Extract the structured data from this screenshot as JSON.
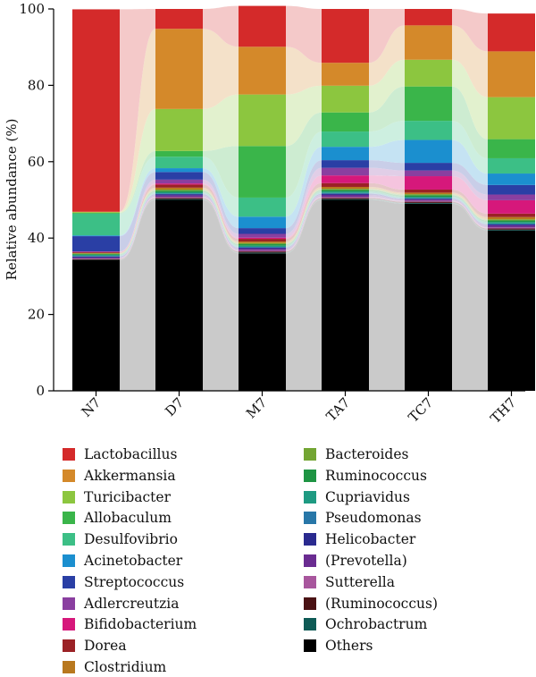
{
  "chart_data": {
    "type": "bar",
    "stacked": true,
    "normalized": true,
    "categories": [
      "N7",
      "D7",
      "M7",
      "TA7",
      "TC7",
      "TH7"
    ],
    "ylabel": "Relative abundance (%)",
    "ylim": [
      0,
      100
    ],
    "yticks": [
      0,
      20,
      40,
      60,
      80,
      100
    ],
    "legend_position": "bottom",
    "series": [
      {
        "name": "Others",
        "color": "#000000",
        "values": [
          34.2,
          50.0,
          36.0,
          50.0,
          49.0,
          42.0
        ]
      },
      {
        "name": "Ochrobactrum",
        "color": "#0e5a55",
        "values": [
          0.1,
          0.2,
          0.2,
          0.2,
          0.2,
          0.2
        ]
      },
      {
        "name": "(Ruminococcus)",
        "color": "#4a1214",
        "values": [
          0.2,
          0.3,
          0.3,
          0.3,
          0.3,
          0.3
        ]
      },
      {
        "name": "Sutterella",
        "color": "#a8569d",
        "values": [
          0.2,
          0.3,
          0.3,
          0.3,
          0.3,
          0.3
        ]
      },
      {
        "name": "(Prevotella)",
        "color": "#6a2c91",
        "values": [
          0.2,
          0.4,
          0.4,
          0.5,
          0.3,
          0.5
        ]
      },
      {
        "name": "Helicobacter",
        "color": "#2a2a8f",
        "values": [
          0.3,
          0.3,
          0.3,
          0.3,
          0.2,
          0.3
        ]
      },
      {
        "name": "Pseudomonas",
        "color": "#2877a8",
        "values": [
          0.1,
          0.2,
          0.2,
          0.2,
          0.2,
          0.2
        ]
      },
      {
        "name": "Cupriavidus",
        "color": "#1e9a82",
        "values": [
          0.3,
          0.3,
          0.3,
          0.4,
          0.3,
          0.4
        ]
      },
      {
        "name": "Ruminococcus",
        "color": "#1e9443",
        "values": [
          0.2,
          0.4,
          0.4,
          0.4,
          0.4,
          0.4
        ]
      },
      {
        "name": "Bacteroides",
        "color": "#73a533",
        "values": [
          0.2,
          0.3,
          0.3,
          0.3,
          0.3,
          0.3
        ]
      },
      {
        "name": "Clostridium",
        "color": "#b8781e",
        "values": [
          0.1,
          0.5,
          0.4,
          0.5,
          0.4,
          0.6
        ]
      },
      {
        "name": "Dorea",
        "color": "#9b2226",
        "values": [
          0.2,
          0.8,
          0.7,
          1.0,
          0.8,
          0.9
        ]
      },
      {
        "name": "Bifidobacterium",
        "color": "#d6187b",
        "values": [
          0.1,
          0.3,
          0.3,
          2.0,
          3.5,
          3.5
        ]
      },
      {
        "name": "Adlercreutzia",
        "color": "#8a3fa0",
        "values": [
          0.1,
          1.0,
          1.0,
          2.0,
          1.5,
          1.5
        ]
      },
      {
        "name": "Streptococcus",
        "color": "#2a3fa5",
        "values": [
          4.0,
          2.0,
          1.5,
          2.0,
          2.0,
          2.5
        ]
      },
      {
        "name": "Acinetobacter",
        "color": "#1b8fcf",
        "values": [
          0.2,
          1.0,
          3.0,
          3.5,
          6.0,
          3.0
        ]
      },
      {
        "name": "Desulfovibrio",
        "color": "#3cbf86",
        "values": [
          5.7,
          3.0,
          5.0,
          4.0,
          5.0,
          4.0
        ]
      },
      {
        "name": "Allobaculum",
        "color": "#3ab54a",
        "values": [
          0.2,
          1.5,
          13.5,
          5.0,
          9.0,
          5.0
        ]
      },
      {
        "name": "Turicibacter",
        "color": "#8cc63f",
        "values": [
          0.2,
          11.0,
          13.5,
          7.0,
          7.0,
          11.0
        ]
      },
      {
        "name": "Akkermansia",
        "color": "#d4892a",
        "values": [
          0.1,
          21.0,
          12.5,
          6.0,
          9.0,
          12.0
        ]
      },
      {
        "name": "Lactobacillus",
        "color": "#d42a2a",
        "values": [
          53.0,
          5.2,
          10.7,
          14.1,
          4.3,
          9.9
        ]
      }
    ],
    "legend_order": [
      [
        "Lactobacillus",
        "Akkermansia",
        "Turicibacter",
        "Allobaculum",
        "Desulfovibrio",
        "Acinetobacter",
        "Streptococcus",
        "Adlercreutzia",
        "Bifidobacterium",
        "Dorea",
        "Clostridium"
      ],
      [
        "Bacteroides",
        "Ruminococcus",
        "Cupriavidus",
        "Pseudomonas",
        "Helicobacter",
        "(Prevotella)",
        "Sutterella",
        "(Ruminococcus)",
        "Ochrobactrum",
        "Others"
      ]
    ]
  }
}
